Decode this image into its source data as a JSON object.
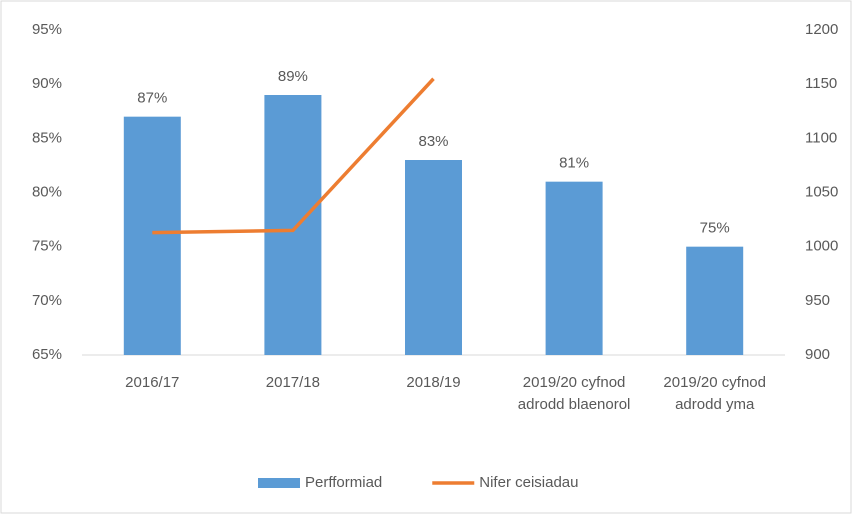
{
  "chart_data": {
    "type": "bar_line",
    "categories": [
      "2016/17",
      "2017/18",
      "2018/19",
      "2019/20 cyfnod adrodd blaenorol",
      "2019/20 cyfnod adrodd yma"
    ],
    "series": [
      {
        "name": "Perfformiad",
        "type": "bar",
        "color": "#5b9bd5",
        "values": [
          87,
          89,
          83,
          81,
          75
        ],
        "value_labels": [
          "87%",
          "89%",
          "83%",
          "81%",
          "75%"
        ]
      },
      {
        "name": "Nifer ceisiadau",
        "type": "line",
        "axis": "y2",
        "color": "#ed7d31",
        "values": [
          1013,
          1015,
          1155,
          null,
          null
        ]
      }
    ],
    "ylim": [
      65,
      95
    ],
    "yticks": [
      {
        "value": 65,
        "label": "65%"
      },
      {
        "value": 70,
        "label": "70%"
      },
      {
        "value": 75,
        "label": "75%"
      },
      {
        "value": 80,
        "label": "80%"
      },
      {
        "value": 85,
        "label": "85%"
      },
      {
        "value": 90,
        "label": "90%"
      },
      {
        "value": 95,
        "label": "95%"
      }
    ],
    "y2lim": [
      900,
      1200
    ],
    "y2ticks": [
      900,
      950,
      1000,
      1050,
      1100,
      1150,
      1200
    ],
    "grid": false,
    "legend": "bottom"
  }
}
